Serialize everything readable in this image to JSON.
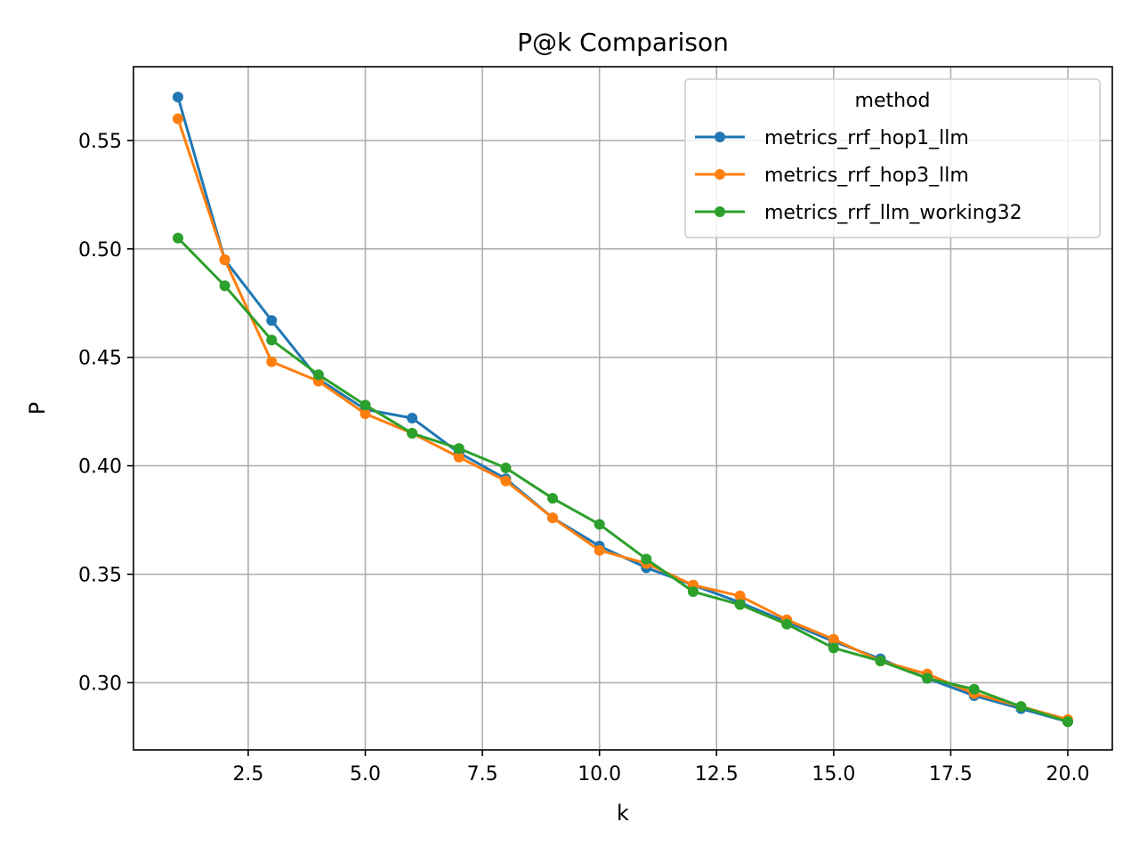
{
  "chart_data": {
    "type": "line",
    "title": "P@k Comparison",
    "xlabel": "k",
    "ylabel": "P",
    "xlim": [
      0.05,
      20.95
    ],
    "ylim": [
      0.269,
      0.584
    ],
    "xticks": [
      2.5,
      5.0,
      7.5,
      10.0,
      12.5,
      15.0,
      17.5,
      20.0
    ],
    "xtick_labels": [
      "2.5",
      "5.0",
      "7.5",
      "10.0",
      "12.5",
      "15.0",
      "17.5",
      "20.0"
    ],
    "yticks": [
      0.3,
      0.35,
      0.4,
      0.45,
      0.5,
      0.55
    ],
    "ytick_labels": [
      "0.30",
      "0.35",
      "0.40",
      "0.45",
      "0.50",
      "0.55"
    ],
    "grid": true,
    "legend": {
      "title": "method",
      "placement": "top-right"
    },
    "x": [
      1,
      2,
      3,
      4,
      5,
      6,
      7,
      8,
      9,
      10,
      11,
      12,
      13,
      14,
      15,
      16,
      17,
      18,
      19,
      20
    ],
    "series": [
      {
        "name": "metrics_rrf_hop1_llm",
        "color": "#1f77b4",
        "values": [
          0.57,
          0.495,
          0.467,
          0.44,
          0.426,
          0.422,
          0.406,
          0.394,
          0.376,
          0.363,
          0.353,
          0.345,
          0.337,
          0.328,
          0.319,
          0.311,
          0.302,
          0.294,
          0.288,
          0.282
        ]
      },
      {
        "name": "metrics_rrf_hop3_llm",
        "color": "#ff7f0e",
        "values": [
          0.56,
          0.495,
          0.448,
          0.439,
          0.424,
          0.415,
          0.404,
          0.393,
          0.376,
          0.361,
          0.355,
          0.345,
          0.34,
          0.329,
          0.32,
          0.31,
          0.304,
          0.295,
          0.289,
          0.283
        ]
      },
      {
        "name": "metrics_rrf_llm_working32",
        "color": "#2ca02c",
        "values": [
          0.505,
          0.483,
          0.458,
          0.442,
          0.428,
          0.415,
          0.408,
          0.399,
          0.385,
          0.373,
          0.357,
          0.342,
          0.336,
          0.327,
          0.316,
          0.31,
          0.302,
          0.297,
          0.289,
          0.282
        ]
      }
    ]
  }
}
